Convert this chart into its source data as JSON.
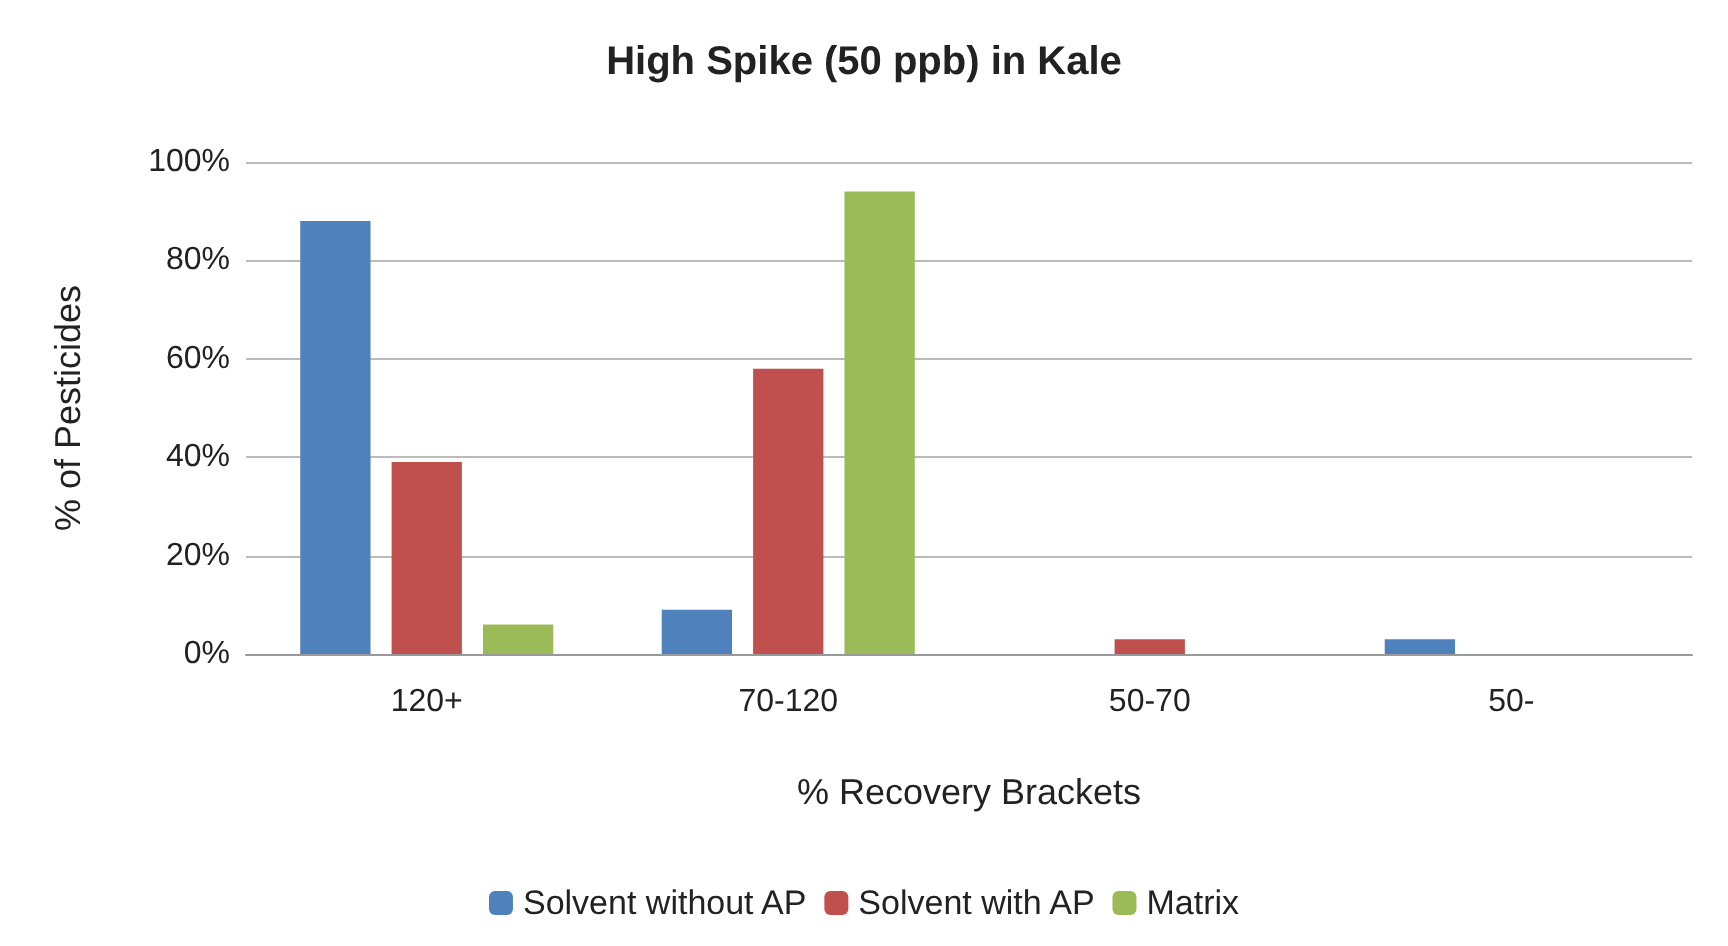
{
  "chart_data": {
    "type": "bar",
    "title": "High Spike (50 ppb) in Kale",
    "xlabel": "% Recovery Brackets",
    "ylabel": "% of Pesticides",
    "categories": [
      "120+",
      "70-120",
      "50-70",
      "50-"
    ],
    "series": [
      {
        "name": "Solvent without AP",
        "color": "#4f81bd",
        "values": [
          88,
          9,
          0,
          3
        ]
      },
      {
        "name": "Solvent with AP",
        "color": "#c0504d",
        "values": [
          39,
          58,
          3,
          0
        ]
      },
      {
        "name": "Matrix",
        "color": "#9bbb59",
        "values": [
          6,
          94,
          0,
          0
        ]
      }
    ],
    "ylim": [
      0,
      100
    ],
    "yticks": [
      {
        "value": 0,
        "label": "0%"
      },
      {
        "value": 20,
        "label": "20%"
      },
      {
        "value": 40,
        "label": "40%"
      },
      {
        "value": 60,
        "label": "60%"
      },
      {
        "value": 80,
        "label": "80%"
      },
      {
        "value": 100,
        "label": "100%"
      }
    ],
    "grid": "y",
    "legend": "bottom"
  }
}
